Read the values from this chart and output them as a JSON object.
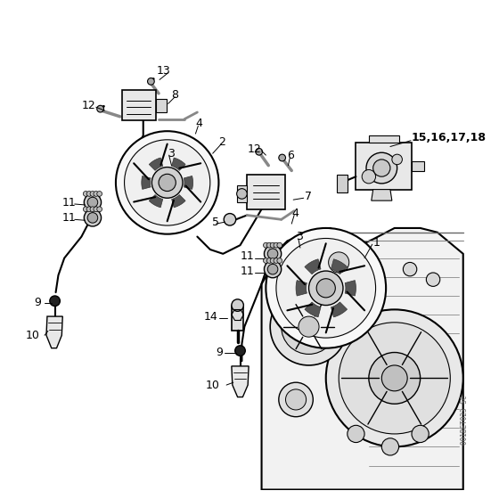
{
  "background_color": "#ffffff",
  "line_color": "#000000",
  "watermark": "001BET023 SC",
  "figsize": [
    5.6,
    5.6
  ],
  "dpi": 100
}
